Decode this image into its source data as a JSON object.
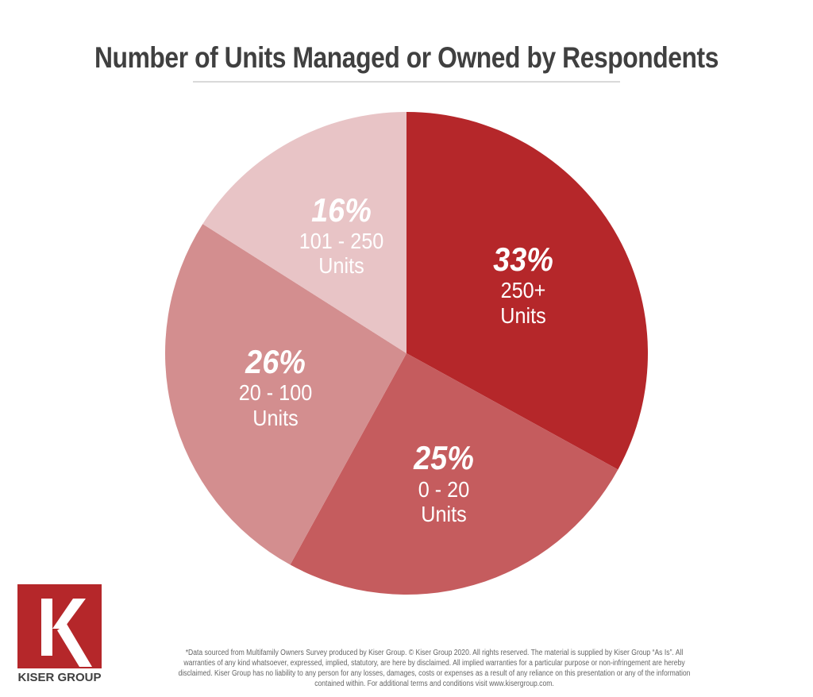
{
  "chart_data": {
    "type": "pie",
    "title": "Number of Units Managed or Owned by Respondents",
    "slices": [
      {
        "percent_label": "33%",
        "category": "250+",
        "unit": "Units",
        "value": 33,
        "color": "#b5272a"
      },
      {
        "percent_label": "25%",
        "category": "0 - 20",
        "unit": "Units",
        "value": 25,
        "color": "#c55c5e"
      },
      {
        "percent_label": "26%",
        "category": "20 - 100",
        "unit": "Units",
        "value": 26,
        "color": "#d38e8f"
      },
      {
        "percent_label": "16%",
        "category": "101 - 250",
        "unit": "Units",
        "value": 16,
        "color": "#e8c4c6"
      }
    ]
  },
  "logo": {
    "letter": "K",
    "text": "KISER GROUP",
    "color": "#b5272a"
  },
  "footnote": "*Data sourced from Multifamily Owners Survey produced by Kiser Group. © Kiser Group 2020. All rights reserved. The material is supplied by Kiser Group “As Is”. All warranties of any kind whatsoever, expressed, implied, statutory, are here by disclaimed. All implied warranties for a particular purpose or non-infringement are hereby disclaimed. Kiser Group has no liability to any person for any losses, damages, costs or expenses as a result of any reliance on this presentation or any of the information contained within. For additional terms and conditions visit www.kisergroup.com."
}
